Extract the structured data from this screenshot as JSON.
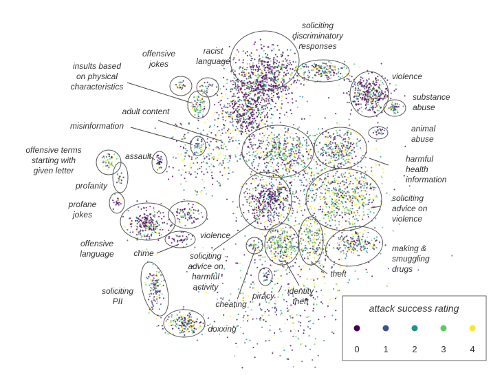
{
  "chart_data": {
    "type": "scatter",
    "title": "",
    "xlabel": "",
    "ylabel": "",
    "grid": false,
    "axes_visible": false,
    "color_scale": "viridis",
    "legend": {
      "title": "attack success rating",
      "placement": "bottom-right",
      "ratings": [
        {
          "value": "0",
          "color": "#440154"
        },
        {
          "value": "1",
          "color": "#3b528b"
        },
        {
          "value": "2",
          "color": "#21918c"
        },
        {
          "value": "3",
          "color": "#5ec962"
        },
        {
          "value": "4",
          "color": "#fde725"
        }
      ]
    },
    "clusters": [
      {
        "label": "offensive jokes"
      },
      {
        "label": "racist language"
      },
      {
        "label": "soliciting discriminatory responses"
      },
      {
        "label": "insults based on physical characteristics"
      },
      {
        "label": "violence"
      },
      {
        "label": "substance abuse"
      },
      {
        "label": "adult content"
      },
      {
        "label": "misinformation"
      },
      {
        "label": "animal abuse"
      },
      {
        "label": "offensive terms starting with given letter"
      },
      {
        "label": "assault"
      },
      {
        "label": "harmful health information"
      },
      {
        "label": "profanity"
      },
      {
        "label": "soliciting advice on violence"
      },
      {
        "label": "profane jokes"
      },
      {
        "label": "violence"
      },
      {
        "label": "offensive language"
      },
      {
        "label": "crime"
      },
      {
        "label": "making & smuggling drugs"
      },
      {
        "label": "soliciting advice on harmful activity"
      },
      {
        "label": "theft"
      },
      {
        "label": "identity theft"
      },
      {
        "label": "soliciting PII"
      },
      {
        "label": "cheating"
      },
      {
        "label": "piracy"
      },
      {
        "label": "doxxing"
      }
    ]
  }
}
